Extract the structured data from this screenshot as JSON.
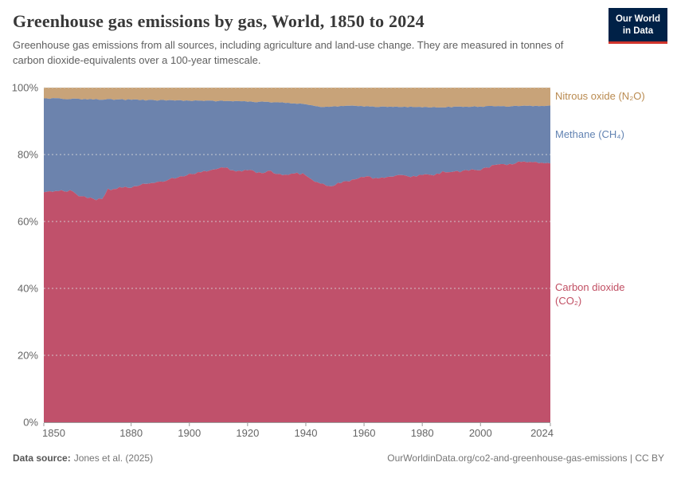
{
  "header": {
    "title": "Greenhouse gas emissions by gas, World, 1850 to 2024",
    "subtitle": "Greenhouse gas emissions from all sources, including agriculture and land-use change. They are measured in tonnes of carbon dioxide-equivalents over a 100-year timescale.",
    "logo": {
      "line1": "Our World",
      "line2": "in Data",
      "bg_color": "#002147",
      "accent_color": "#d0342c"
    }
  },
  "series_labels": [
    {
      "text": "Nitrous oxide (N₂O)",
      "color": "#b98a4f"
    },
    {
      "text": "Methane (CH₄)",
      "color": "#6283b2"
    },
    {
      "text_line1": "Carbon dioxide",
      "text_line2": "(CO₂)",
      "color": "#c14f63"
    }
  ],
  "footer": {
    "source_label": "Data source:",
    "source_value": "Jones et al. (2025)",
    "credit": "OurWorldinData.org/co2-and-greenhouse-gas-emissions | CC BY"
  },
  "chart_data": {
    "type": "area",
    "stacked": true,
    "unit": "%",
    "title": "Greenhouse gas emissions by gas, World, 1850 to 2024",
    "x_range": [
      1850,
      2024
    ],
    "y_range": [
      0,
      100
    ],
    "x_ticks": [
      1850,
      1880,
      1900,
      1920,
      1940,
      1960,
      1980,
      2000,
      2024
    ],
    "y_ticks": [
      0,
      20,
      40,
      60,
      80,
      100
    ],
    "y_tick_suffix": "%",
    "grid": "dashed-horizontal",
    "legend_position": "right-edge-labels",
    "years": [
      1850,
      1855,
      1860,
      1862,
      1865,
      1868,
      1870,
      1872,
      1875,
      1880,
      1885,
      1890,
      1895,
      1900,
      1905,
      1910,
      1913,
      1916,
      1920,
      1925,
      1928,
      1932,
      1936,
      1940,
      1944,
      1948,
      1952,
      1956,
      1960,
      1964,
      1968,
      1972,
      1976,
      1980,
      1984,
      1988,
      1992,
      1996,
      2000,
      2004,
      2008,
      2012,
      2016,
      2020,
      2024
    ],
    "series": [
      {
        "name": "Carbon dioxide (CO₂)",
        "color": "#c0516b",
        "values": [
          69.0,
          69.3,
          69.0,
          67.5,
          67.0,
          66.5,
          67.0,
          69.5,
          70.0,
          70.3,
          71.2,
          72.0,
          73.0,
          74.0,
          75.0,
          75.8,
          76.0,
          74.8,
          75.3,
          74.5,
          75.0,
          73.8,
          74.5,
          74.0,
          71.5,
          70.5,
          71.5,
          72.5,
          73.5,
          73.0,
          73.3,
          74.0,
          73.5,
          74.0,
          73.8,
          75.0,
          74.8,
          75.5,
          75.5,
          76.5,
          77.0,
          77.5,
          77.8,
          77.5,
          77.2
        ]
      },
      {
        "name": "Methane (CH₄)",
        "color": "#6c83ad",
        "values": [
          27.8,
          27.4,
          27.6,
          29.1,
          29.5,
          30.0,
          29.5,
          27.0,
          26.4,
          26.1,
          25.1,
          24.2,
          23.2,
          22.1,
          21.0,
          20.2,
          20.0,
          21.1,
          20.5,
          21.2,
          20.6,
          21.7,
          20.8,
          21.0,
          22.8,
          23.7,
          22.9,
          22.0,
          20.9,
          21.3,
          20.9,
          20.3,
          20.7,
          20.2,
          20.3,
          19.2,
          19.4,
          18.8,
          18.8,
          17.9,
          17.4,
          17.0,
          16.7,
          17.0,
          17.3
        ]
      },
      {
        "name": "Nitrous oxide (N₂O)",
        "color": "#c8a379",
        "values": [
          3.2,
          3.3,
          3.4,
          3.4,
          3.5,
          3.5,
          3.5,
          3.5,
          3.6,
          3.6,
          3.7,
          3.8,
          3.8,
          3.9,
          4.0,
          4.0,
          4.0,
          4.1,
          4.2,
          4.3,
          4.4,
          4.5,
          4.7,
          5.0,
          5.7,
          5.8,
          5.6,
          5.5,
          5.6,
          5.7,
          5.8,
          5.7,
          5.8,
          5.8,
          5.9,
          5.8,
          5.8,
          5.7,
          5.7,
          5.6,
          5.6,
          5.5,
          5.5,
          5.5,
          5.5
        ]
      }
    ],
    "axis_color": "#9a9a9a",
    "grid_color": "#d8d8d8",
    "tick_label_color": "#666666"
  }
}
